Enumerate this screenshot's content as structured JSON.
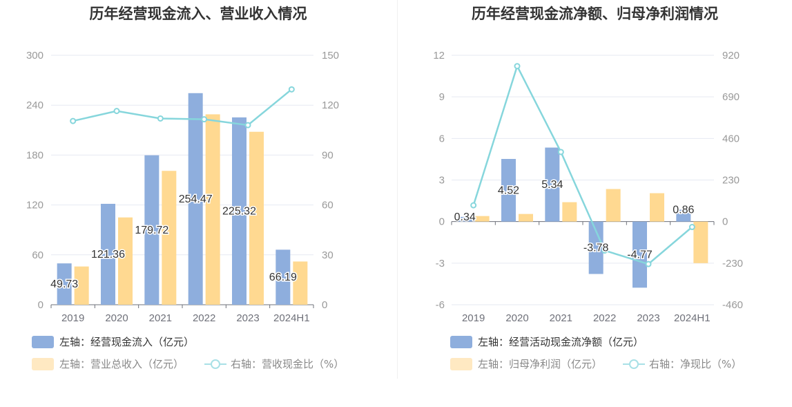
{
  "charts": [
    {
      "title": "历年经营现金流入、营业收入情况",
      "legend": [
        {
          "label": "左轴：经营现金流入（亿元）",
          "kind": "bar"
        },
        {
          "label": "左轴：营业总收入（亿元）",
          "kind": "bar"
        },
        {
          "label": "右轴：营收现金比（%）",
          "kind": "line"
        }
      ]
    },
    {
      "title": "历年经营现金流净额、归母净利润情况",
      "legend": [
        {
          "label": "左轴：经营活动现金流净额（亿元）",
          "kind": "bar"
        },
        {
          "label": "左轴：归母净利润（亿元）",
          "kind": "bar"
        },
        {
          "label": "右轴：净现比（%）",
          "kind": "line"
        }
      ]
    }
  ],
  "chart_data": [
    {
      "type": "bar",
      "title": "历年经营现金流入、营业收入情况",
      "categories": [
        "2019",
        "2020",
        "2021",
        "2022",
        "2023",
        "2024H1"
      ],
      "y_left": {
        "ticks": [
          "0",
          "60",
          "120",
          "180",
          "240",
          "300"
        ],
        "range": [
          0,
          300
        ]
      },
      "y_right": {
        "ticks": [
          "0",
          "30",
          "60",
          "90",
          "120",
          "150"
        ],
        "range": [
          0,
          150
        ]
      },
      "series": [
        {
          "name": "左轴：经营现金流入（亿元）",
          "type": "bar",
          "axis": "left",
          "color": "#8eaedd",
          "values": [
            49.73,
            121.36,
            179.72,
            254.47,
            225.32,
            66.19
          ],
          "labels": [
            "49.73",
            "121.36",
            "179.72",
            "254.47",
            "225.32",
            "66.19"
          ]
        },
        {
          "name": "左轴：营业总收入（亿元）",
          "type": "bar",
          "axis": "left",
          "color": "#ffd991",
          "values": [
            46,
            105,
            161,
            229,
            208,
            52
          ]
        },
        {
          "name": "右轴：营收现金比（%）",
          "type": "line",
          "axis": "right",
          "color": "#86d6dc",
          "values": [
            110.5,
            116.5,
            112,
            111.5,
            108,
            129.5
          ]
        }
      ],
      "grid": true
    },
    {
      "type": "bar",
      "title": "历年经营现金流净额、归母净利润情况",
      "categories": [
        "2019",
        "2020",
        "2021",
        "2022",
        "2023",
        "2024H1"
      ],
      "y_left": {
        "ticks": [
          "-6",
          "-3",
          "0",
          "3",
          "6",
          "9",
          "12"
        ],
        "range": [
          -6,
          12
        ]
      },
      "y_right": {
        "ticks": [
          "-460",
          "-230",
          "0",
          "230",
          "460",
          "690",
          "920"
        ],
        "range": [
          -460,
          920
        ]
      },
      "series": [
        {
          "name": "左轴：经营活动现金流净额（亿元）",
          "type": "bar",
          "axis": "left",
          "color": "#8eaedd",
          "values": [
            0.34,
            4.52,
            5.34,
            -3.78,
            -4.77,
            0.86
          ],
          "labels": [
            "0.34",
            "4.52",
            "5.34",
            "-3.78",
            "-4.77",
            "0.86"
          ]
        },
        {
          "name": "左轴：归母净利润（亿元）",
          "type": "bar",
          "axis": "left",
          "color": "#ffd991",
          "values": [
            0.4,
            0.55,
            1.4,
            2.35,
            2.05,
            -3.0
          ]
        },
        {
          "name": "右轴：净现比（%）",
          "type": "line",
          "axis": "right",
          "color": "#86d6dc",
          "values": [
            90,
            860,
            385,
            -160,
            -235,
            -30
          ]
        }
      ],
      "grid": true
    }
  ]
}
